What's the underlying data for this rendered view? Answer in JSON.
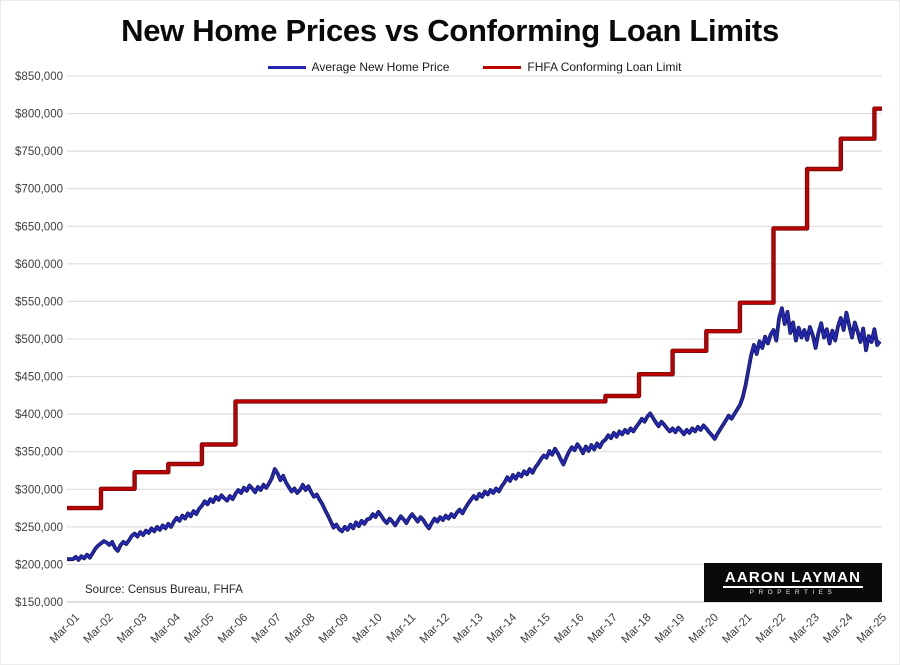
{
  "branding": {
    "name": "AARON LAYMAN",
    "subtitle": "PROPERTIES"
  },
  "chart_data": {
    "type": "line",
    "title": "New Home Prices vs Conforming Loan Limits",
    "source_note": "Source: Census Bureau, FHFA",
    "grid": "horizontal",
    "legend_position": "top-center",
    "colors": {
      "home_price_line": "#2427b0",
      "home_price_edge": "#14165f",
      "loan_limit_line": "#c00000",
      "loan_limit_edge": "#750b0b",
      "gridline": "#d8d8d8",
      "axis_text": "#404040"
    },
    "legend": [
      {
        "label": "Average New Home Price",
        "color": "#2427b0"
      },
      {
        "label": "FHFA Conforming Loan Limit",
        "color": "#c00000"
      }
    ],
    "y_axis": {
      "min": 150000,
      "max": 850000,
      "step": 50000,
      "tick_labels": [
        "$150,000",
        "$200,000",
        "$250,000",
        "$300,000",
        "$350,000",
        "$400,000",
        "$450,000",
        "$500,000",
        "$550,000",
        "$600,000",
        "$650,000",
        "$700,000",
        "$750,000",
        "$800,000",
        "$850,000"
      ]
    },
    "x_axis": {
      "start": "2001-03",
      "end": "2025-03",
      "tick_frequency": "yearly",
      "tick_labels": [
        "Mar-01",
        "Mar-02",
        "Mar-03",
        "Mar-04",
        "Mar-05",
        "Mar-06",
        "Mar-07",
        "Mar-08",
        "Mar-09",
        "Mar-10",
        "Mar-11",
        "Mar-12",
        "Mar-13",
        "Mar-14",
        "Mar-15",
        "Mar-16",
        "Mar-17",
        "Mar-18",
        "Mar-19",
        "Mar-20",
        "Mar-21",
        "Mar-22",
        "Mar-23",
        "Mar-24",
        "Mar-25"
      ]
    },
    "series": [
      {
        "name": "Average New Home Price",
        "type": "line",
        "start": "2001-03",
        "frequency": "monthly",
        "unit": "USD thousands (estimated from chart)",
        "values": [
          207,
          210,
          206,
          211,
          208,
          213,
          209,
          215,
          221,
          225,
          228,
          231,
          229,
          226,
          230,
          222,
          218,
          226,
          230,
          227,
          232,
          238,
          241,
          237,
          243,
          239,
          245,
          242,
          248,
          244,
          250,
          246,
          252,
          248,
          254,
          250,
          257,
          262,
          258,
          265,
          261,
          268,
          264,
          271,
          267,
          274,
          278,
          284,
          280,
          287,
          283,
          290,
          286,
          292,
          288,
          285,
          291,
          287,
          294,
          299,
          295,
          302,
          298,
          305,
          301,
          296,
          303,
          299,
          306,
          302,
          308,
          315,
          327,
          321,
          312,
          318,
          309,
          303,
          297,
          301,
          295,
          299,
          306,
          299,
          304,
          296,
          290,
          293,
          286,
          280,
          272,
          265,
          257,
          249,
          253,
          247,
          244,
          250,
          246,
          253,
          248,
          256,
          251,
          258,
          254,
          260,
          261,
          267,
          263,
          270,
          265,
          259,
          255,
          261,
          257,
          252,
          258,
          264,
          260,
          255,
          262,
          267,
          262,
          257,
          263,
          259,
          253,
          248,
          255,
          261,
          257,
          263,
          259,
          265,
          261,
          267,
          263,
          269,
          273,
          268,
          275,
          281,
          286,
          291,
          287,
          294,
          290,
          297,
          293,
          299,
          295,
          301,
          297,
          304,
          309,
          316,
          311,
          319,
          314,
          321,
          317,
          324,
          320,
          327,
          322,
          329,
          334,
          340,
          345,
          342,
          351,
          346,
          354,
          348,
          340,
          333,
          342,
          350,
          356,
          352,
          360,
          355,
          348,
          357,
          351,
          359,
          353,
          361,
          356,
          363,
          366,
          372,
          368,
          375,
          370,
          377,
          373,
          379,
          375,
          381,
          377,
          383,
          388,
          394,
          390,
          397,
          401,
          395,
          389,
          384,
          390,
          386,
          381,
          377,
          381,
          376,
          382,
          378,
          373,
          379,
          375,
          381,
          377,
          383,
          379,
          385,
          381,
          376,
          372,
          367,
          374,
          380,
          386,
          392,
          398,
          394,
          400,
          406,
          412,
          422,
          438,
          458,
          478,
          492,
          480,
          497,
          488,
          503,
          494,
          506,
          512,
          498,
          528,
          541,
          520,
          536,
          508,
          522,
          498,
          515,
          502,
          512,
          499,
          516,
          505,
          488,
          508,
          521,
          502,
          513,
          494,
          511,
          498,
          517,
          528,
          512,
          535,
          518,
          502,
          522,
          510,
          496,
          514,
          485,
          504,
          496,
          513,
          492,
          497
        ]
      },
      {
        "name": "FHFA Conforming Loan Limit",
        "type": "step",
        "unit": "USD",
        "end": "2025-03",
        "steps": [
          {
            "from": "2001-03",
            "value": 275000
          },
          {
            "from": "2002-01",
            "value": 300700
          },
          {
            "from": "2003-01",
            "value": 322700
          },
          {
            "from": "2004-01",
            "value": 333700
          },
          {
            "from": "2005-01",
            "value": 359650
          },
          {
            "from": "2006-01",
            "value": 417000
          },
          {
            "from": "2017-01",
            "value": 424100
          },
          {
            "from": "2018-01",
            "value": 453100
          },
          {
            "from": "2019-01",
            "value": 484350
          },
          {
            "from": "2020-01",
            "value": 510400
          },
          {
            "from": "2021-01",
            "value": 548250
          },
          {
            "from": "2022-01",
            "value": 647200
          },
          {
            "from": "2023-01",
            "value": 726200
          },
          {
            "from": "2024-01",
            "value": 766550
          },
          {
            "from": "2025-01",
            "value": 806500
          }
        ]
      }
    ]
  }
}
